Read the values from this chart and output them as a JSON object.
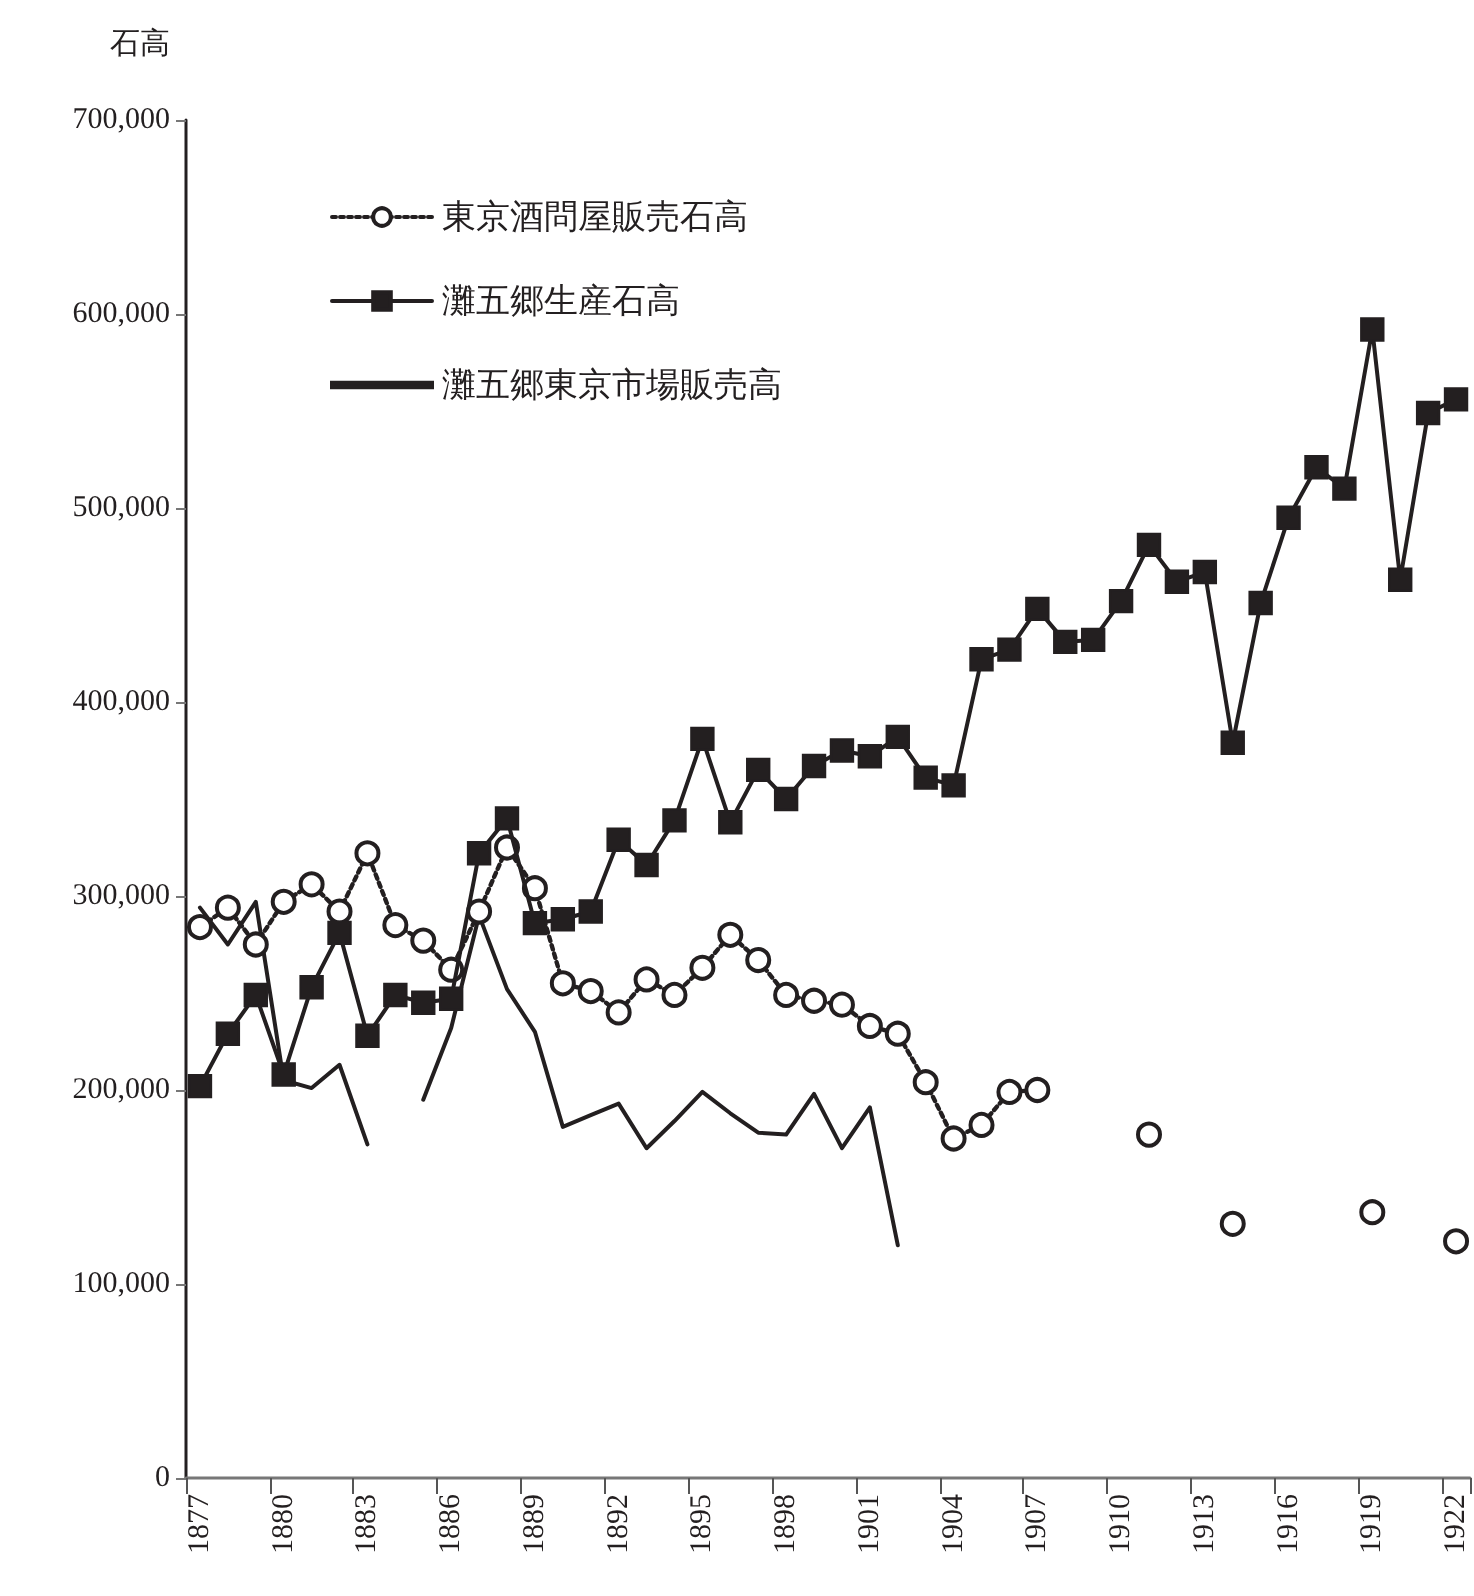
{
  "chart_data": {
    "type": "line",
    "ylabel": "石高",
    "categories": [
      "1877",
      null,
      null,
      "1880",
      null,
      null,
      "1883",
      null,
      null,
      "1886",
      null,
      null,
      "1889",
      null,
      null,
      "1892",
      null,
      null,
      "1895",
      null,
      null,
      "1898",
      null,
      null,
      "1901",
      null,
      null,
      "1904",
      null,
      null,
      "1907",
      null,
      null,
      "1910",
      null,
      null,
      "1913",
      null,
      null,
      "1916",
      null,
      null,
      "1919",
      null,
      null,
      "1922"
    ],
    "series": [
      {
        "name": "東京酒問屋販売石高",
        "color": "#231f20",
        "marker": "circle",
        "line_style": "dotted",
        "values": [
          284000,
          294000,
          275000,
          297000,
          306000,
          292000,
          322000,
          285000,
          277000,
          262000,
          292000,
          325000,
          304000,
          255000,
          251000,
          240000,
          257000,
          249000,
          263000,
          280000,
          267000,
          249000,
          246000,
          244000,
          233000,
          229000,
          204000,
          175000,
          182000,
          199000,
          200000,
          null,
          null,
          null,
          177000,
          null,
          null,
          131000,
          null,
          null,
          null,
          null,
          137000,
          null,
          null,
          122000
        ]
      },
      {
        "name": "灘五郷生産石高",
        "color": "#231f20",
        "marker": "square",
        "line_style": "solid",
        "values": [
          202000,
          229000,
          249000,
          208000,
          253000,
          281000,
          228000,
          249000,
          245000,
          247000,
          322000,
          340000,
          286000,
          288000,
          292000,
          329000,
          316000,
          339000,
          381000,
          338000,
          365000,
          350000,
          367000,
          375000,
          372000,
          382000,
          361000,
          357000,
          422000,
          427000,
          448000,
          431000,
          432000,
          452000,
          481000,
          462000,
          467000,
          379000,
          451000,
          495000,
          521000,
          510000,
          592000,
          463000,
          549000,
          556000
        ]
      },
      {
        "name": "灘五郷東京市場販売高",
        "color": "#231f20",
        "marker": "none",
        "line_style": "solid",
        "values": [
          294000,
          275000,
          297000,
          205000,
          201000,
          213000,
          172000,
          null,
          195000,
          232000,
          290000,
          252000,
          230000,
          181000,
          187000,
          193000,
          170000,
          184000,
          199000,
          188000,
          178000,
          177000,
          198000,
          170000,
          191000,
          120000,
          null,
          null,
          null,
          null,
          null,
          null,
          null,
          null,
          null,
          null,
          null,
          null,
          null,
          null,
          null,
          null,
          null,
          null,
          null,
          null
        ]
      }
    ],
    "ylim": [
      0,
      700000
    ],
    "yticks": [
      {
        "value": 0,
        "label": "0"
      },
      {
        "value": 100000,
        "label": "100,000"
      },
      {
        "value": 200000,
        "label": "200,000"
      },
      {
        "value": 300000,
        "label": "300,000"
      },
      {
        "value": 400000,
        "label": "400,000"
      },
      {
        "value": 500000,
        "label": "500,000"
      },
      {
        "value": 600000,
        "label": "600,000"
      },
      {
        "value": 700000,
        "label": "700,000"
      }
    ],
    "grid": false,
    "legend": "top left"
  }
}
